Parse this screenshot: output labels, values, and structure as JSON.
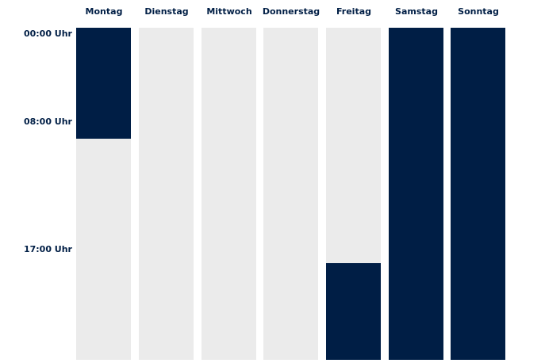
{
  "days": [
    {
      "label": "Montag",
      "blocks": [
        {
          "start": 0,
          "end": 8
        }
      ]
    },
    {
      "label": "Dienstag",
      "blocks": []
    },
    {
      "label": "Mittwoch",
      "blocks": []
    },
    {
      "label": "Donnerstag",
      "blocks": []
    },
    {
      "label": "Freitag",
      "blocks": [
        {
          "start": 17,
          "end": 24
        }
      ]
    },
    {
      "label": "Samstag",
      "blocks": [
        {
          "start": 0,
          "end": 24
        }
      ]
    },
    {
      "label": "Sonntag",
      "blocks": [
        {
          "start": 0,
          "end": 24
        }
      ]
    }
  ],
  "time_labels": [
    {
      "text": "00:00 Uhr",
      "hour": 0
    },
    {
      "text": "08:00 Uhr",
      "hour": 8
    },
    {
      "text": "17:00 Uhr",
      "hour": 17
    }
  ],
  "colors": {
    "block": "#001e45",
    "empty": "#ebebeb",
    "text": "#001e45"
  }
}
